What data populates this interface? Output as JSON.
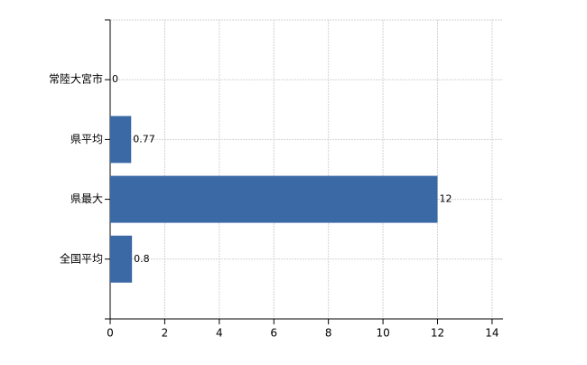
{
  "chart_data": {
    "type": "hbar",
    "categories": [
      "常陸大宮市",
      "県平均",
      "県最大",
      "全国平均"
    ],
    "values": [
      0,
      0.77,
      12,
      0.8
    ],
    "color": "#3b69a6",
    "xlim": [
      0,
      14.4
    ],
    "xticks": [
      0,
      2,
      4,
      6,
      8,
      10,
      12,
      14
    ],
    "grid": true
  }
}
